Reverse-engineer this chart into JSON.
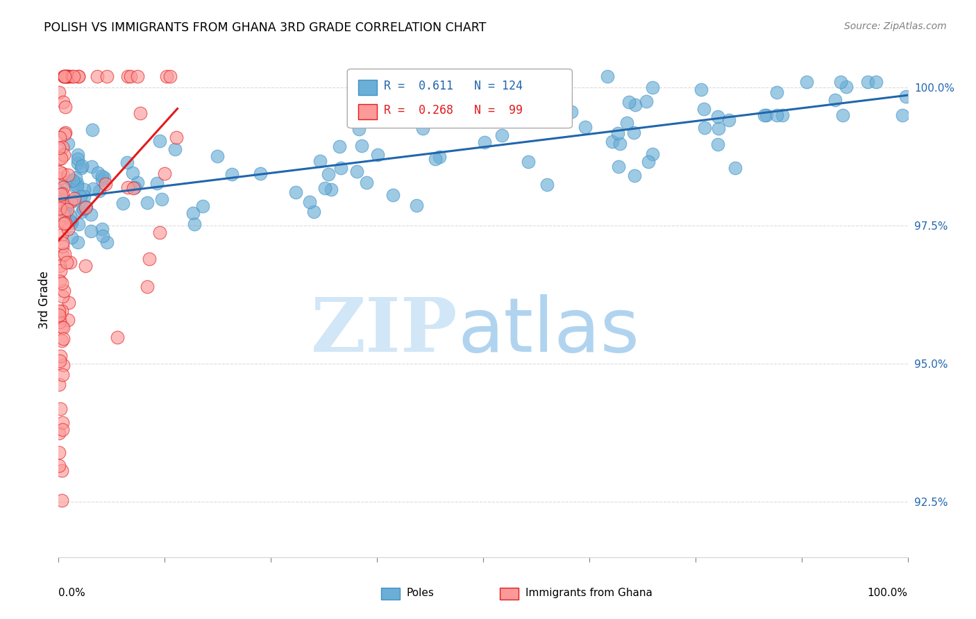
{
  "title": "POLISH VS IMMIGRANTS FROM GHANA 3RD GRADE CORRELATION CHART",
  "source": "Source: ZipAtlas.com",
  "ylabel": "3rd Grade",
  "yticks": [
    92.5,
    95.0,
    97.5,
    100.0
  ],
  "ytick_labels": [
    "92.5%",
    "95.0%",
    "97.5%",
    "100.0%"
  ],
  "xrange": [
    0.0,
    1.0
  ],
  "yrange": [
    91.5,
    100.8
  ],
  "blue_color": "#6baed6",
  "blue_edge": "#4292c6",
  "pink_color": "#fb9a99",
  "pink_edge": "#e31a1c",
  "trend_blue": "#2166ac",
  "trend_pink": "#e31a1c",
  "legend_r_blue": "0.611",
  "legend_n_blue": "124",
  "legend_r_pink": "0.268",
  "legend_n_pink": "99"
}
